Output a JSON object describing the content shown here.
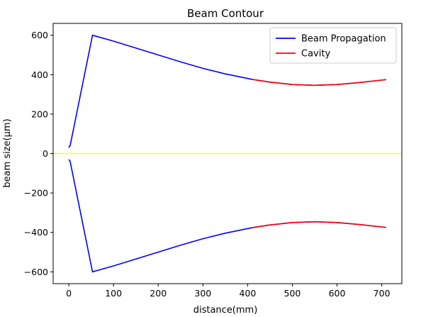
{
  "chart_data": {
    "type": "line",
    "title": "Beam Contour",
    "xlabel": "distance(mm)",
    "ylabel": "beam size(μm)",
    "xlim": [
      -35,
      745
    ],
    "ylim": [
      -660,
      660
    ],
    "xticks": [
      0,
      100,
      200,
      300,
      400,
      500,
      600,
      700
    ],
    "yticks": [
      -600,
      -400,
      -200,
      0,
      200,
      400,
      600
    ],
    "grid": false,
    "legend_position": "top-right",
    "reference_line": {
      "y": 0,
      "color": "#ffff00"
    },
    "series": [
      {
        "name": "Beam Propagation",
        "color": "#0000ff",
        "mirrored": true,
        "x": [
          0,
          3,
          53,
          100,
          150,
          200,
          250,
          300,
          350,
          410,
          450,
          500,
          550,
          600,
          650,
          710
        ],
        "y": [
          30,
          40,
          600,
          570,
          535,
          500,
          465,
          432,
          404,
          376,
          362,
          350,
          346,
          350,
          360,
          375
        ]
      },
      {
        "name": "Cavity",
        "color": "#ff0000",
        "mirrored": true,
        "x": [
          410,
          450,
          500,
          550,
          600,
          650,
          710
        ],
        "y": [
          376,
          362,
          350,
          346,
          350,
          360,
          375
        ]
      }
    ]
  }
}
